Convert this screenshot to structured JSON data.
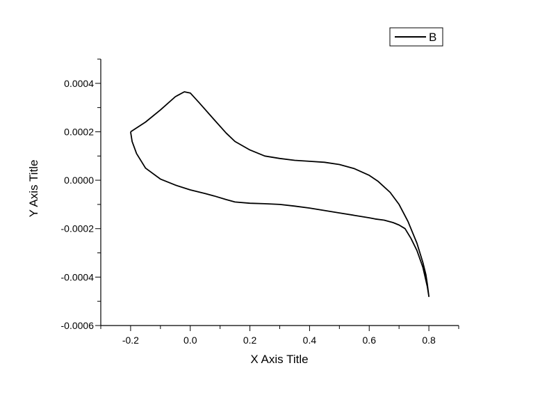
{
  "chart_data": {
    "type": "line",
    "xlabel": "X Axis Title",
    "ylabel": "Y Axis Title",
    "xlim": [
      -0.3,
      0.9
    ],
    "ylim": [
      -0.0006,
      0.0005
    ],
    "x_ticks": [
      -0.2,
      0.0,
      0.2,
      0.4,
      0.6,
      0.8
    ],
    "x_tick_labels": [
      "-0.2",
      "0.0",
      "0.2",
      "0.4",
      "0.6",
      "0.8"
    ],
    "y_ticks": [
      -0.0006,
      -0.0004,
      -0.0002,
      0.0,
      0.0002,
      0.0004
    ],
    "y_tick_labels": [
      "-0.0006",
      "-0.0004",
      "-0.0002",
      "0.0000",
      "0.0002",
      "0.0004"
    ],
    "grid": false,
    "legend": {
      "position": "top-right"
    },
    "series": [
      {
        "name": "B",
        "color": "#000000",
        "x": [
          -0.2,
          -0.15,
          -0.1,
          -0.05,
          -0.02,
          0.0,
          0.03,
          0.08,
          0.12,
          0.15,
          0.2,
          0.25,
          0.3,
          0.35,
          0.4,
          0.45,
          0.5,
          0.55,
          0.6,
          0.63,
          0.67,
          0.7,
          0.73,
          0.76,
          0.78,
          0.79,
          0.795,
          0.8,
          0.8,
          0.795,
          0.78,
          0.76,
          0.74,
          0.72,
          0.7,
          0.68,
          0.65,
          0.62,
          0.6,
          0.55,
          0.5,
          0.45,
          0.4,
          0.35,
          0.3,
          0.25,
          0.2,
          0.15,
          0.12,
          0.08,
          0.05,
          0.0,
          -0.05,
          -0.1,
          -0.15,
          -0.18,
          -0.195,
          -0.2
        ],
        "y": [
          0.0002,
          0.00024,
          0.00029,
          0.000345,
          0.000365,
          0.00036,
          0.00032,
          0.00025,
          0.000195,
          0.00016,
          0.000125,
          0.0001,
          9e-05,
          8.2e-05,
          7.8e-05,
          7.4e-05,
          6.5e-05,
          4.8e-05,
          2e-05,
          -5e-06,
          -5e-05,
          -0.0001,
          -0.00017,
          -0.00026,
          -0.00034,
          -0.00039,
          -0.00043,
          -0.00048,
          -0.00048,
          -0.00044,
          -0.00036,
          -0.00029,
          -0.00024,
          -0.0002,
          -0.000185,
          -0.000175,
          -0.000165,
          -0.00016,
          -0.000155,
          -0.000145,
          -0.000135,
          -0.000125,
          -0.000115,
          -0.000107,
          -0.0001,
          -9.7e-05,
          -9.5e-05,
          -9e-05,
          -8e-05,
          -6.5e-05,
          -5.5e-05,
          -4e-05,
          -2e-05,
          5e-06,
          5e-05,
          0.00011,
          0.00016,
          0.0002
        ]
      }
    ]
  }
}
